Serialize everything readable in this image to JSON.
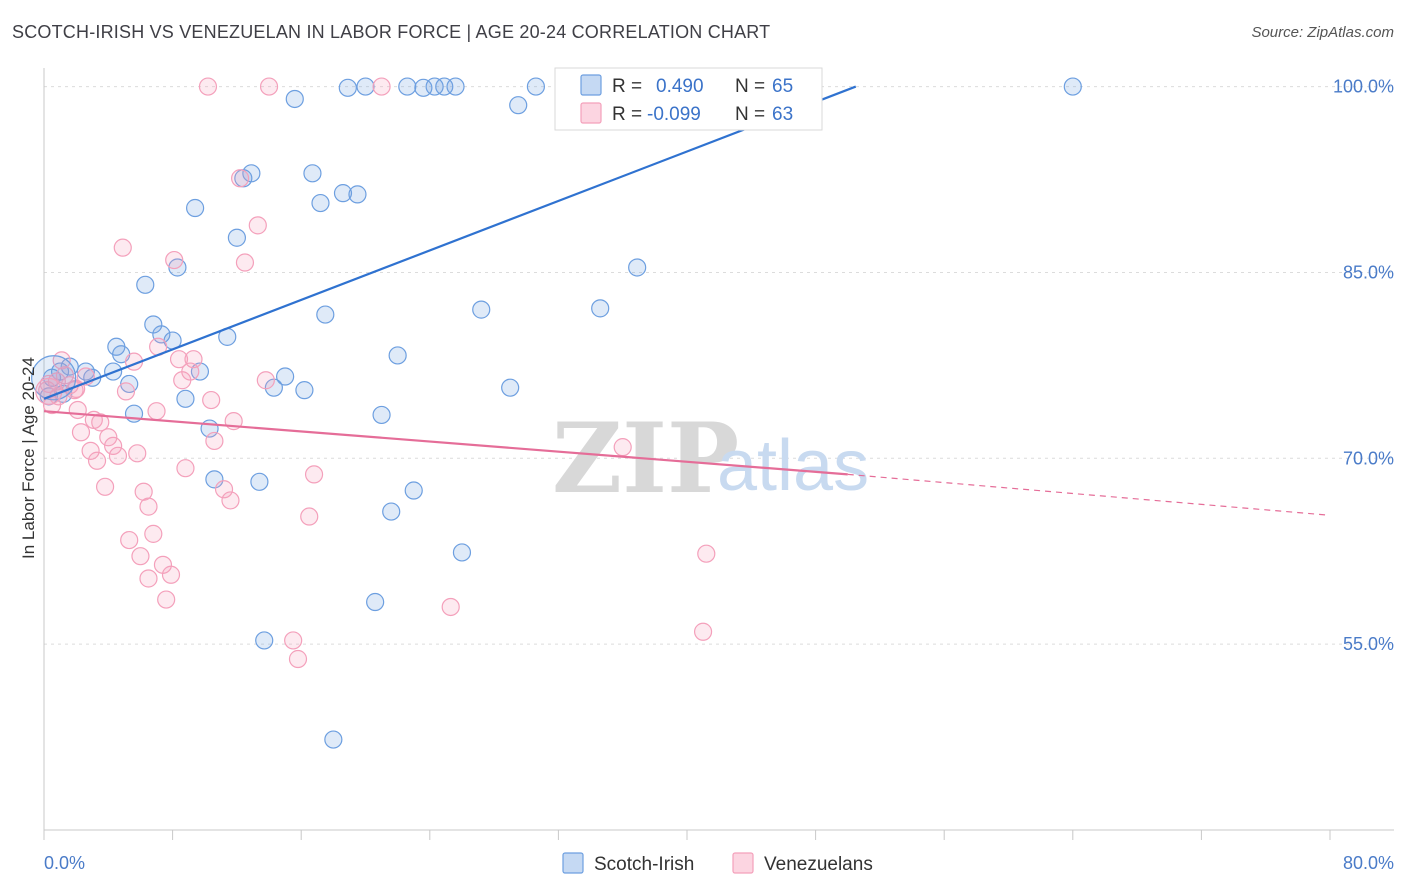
{
  "header": {
    "title": "SCOTCH-IRISH VS VENEZUELAN IN LABOR FORCE | AGE 20-24 CORRELATION CHART",
    "source": "Source: ZipAtlas.com"
  },
  "watermark": {
    "zip": "ZIP",
    "atlas": "atlas"
  },
  "legend": {
    "rows": [
      {
        "r_label": "R =",
        "r_value": "0.490",
        "n_label": "N =",
        "n_value": "65",
        "color": "#6d9fe0"
      },
      {
        "r_label": "R =",
        "r_value": "-0.099",
        "n_label": "N =",
        "n_value": "63",
        "color": "#f4a0bb"
      }
    ]
  },
  "bottom_legend": {
    "items": [
      {
        "label": "Scotch-Irish",
        "color": "#6d9fe0"
      },
      {
        "label": "Venezuelans",
        "color": "#f4a0bb"
      }
    ]
  },
  "chart_data": {
    "type": "scatter",
    "title": "SCOTCH-IRISH VS VENEZUELAN IN LABOR FORCE | AGE 20-24 CORRELATION CHART",
    "xlabel": "",
    "ylabel": "In Labor Force | Age 20-24",
    "xlim": [
      0,
      80
    ],
    "ylim": [
      40,
      101.5
    ],
    "x_tick_labels": [
      "0.0%",
      "80.0%"
    ],
    "y_ticks": [
      55,
      70,
      85,
      100
    ],
    "y_tick_labels": [
      "55.0%",
      "70.0%",
      "85.0%",
      "100.0%"
    ],
    "grid": true,
    "legend_position": "top-center",
    "series": [
      {
        "name": "Scotch-Irish",
        "color": "#6d9fe0",
        "trend": {
          "x": [
            0,
            50.5
          ],
          "y": [
            74.8,
            100.0
          ],
          "dashed_to": null
        },
        "points": [
          [
            1.0,
            77.0
          ],
          [
            1.6,
            77.4
          ],
          [
            2.6,
            77.0
          ],
          [
            3.0,
            76.5
          ],
          [
            4.3,
            77.0
          ],
          [
            4.5,
            79.0
          ],
          [
            4.8,
            78.4
          ],
          [
            5.3,
            76.0
          ],
          [
            5.6,
            73.6
          ],
          [
            6.3,
            84.0
          ],
          [
            6.8,
            80.8
          ],
          [
            7.3,
            80.0
          ],
          [
            8.0,
            79.5
          ],
          [
            8.3,
            85.4
          ],
          [
            8.8,
            74.8
          ],
          [
            9.4,
            90.2
          ],
          [
            9.7,
            77.0
          ],
          [
            10.3,
            72.4
          ],
          [
            10.6,
            68.3
          ],
          [
            11.4,
            79.8
          ],
          [
            12.0,
            87.8
          ],
          [
            12.4,
            92.6
          ],
          [
            12.9,
            93.0
          ],
          [
            13.4,
            68.1
          ],
          [
            13.7,
            55.3
          ],
          [
            14.3,
            75.7
          ],
          [
            15.0,
            76.6
          ],
          [
            15.6,
            99.0
          ],
          [
            16.2,
            75.5
          ],
          [
            16.7,
            93.0
          ],
          [
            17.2,
            90.6
          ],
          [
            17.5,
            81.6
          ],
          [
            18.0,
            47.3
          ],
          [
            18.6,
            91.4
          ],
          [
            18.9,
            99.9
          ],
          [
            19.5,
            91.3
          ],
          [
            20.0,
            100.0
          ],
          [
            20.6,
            58.4
          ],
          [
            21.0,
            73.5
          ],
          [
            21.6,
            65.7
          ],
          [
            22.0,
            78.3
          ],
          [
            22.6,
            100.0
          ],
          [
            23.0,
            67.4
          ],
          [
            23.6,
            99.9
          ],
          [
            24.3,
            100.0
          ],
          [
            24.9,
            100.0
          ],
          [
            25.6,
            100.0
          ],
          [
            26.0,
            62.4
          ],
          [
            27.2,
            82.0
          ],
          [
            29.0,
            75.7
          ],
          [
            29.5,
            98.5
          ],
          [
            30.6,
            100.0
          ],
          [
            34.0,
            100.0
          ],
          [
            34.6,
            82.1
          ],
          [
            36.9,
            85.4
          ],
          [
            36.3,
            100.0
          ],
          [
            39.0,
            100.0
          ],
          [
            40.0,
            100.0
          ],
          [
            43.4,
            100.0
          ],
          [
            44.0,
            100.0
          ],
          [
            45.0,
            100.0
          ],
          [
            64.0,
            100.0
          ],
          [
            0.3,
            75.0
          ],
          [
            0.5,
            76.5
          ],
          [
            1.2,
            75.2
          ]
        ]
      },
      {
        "name": "Venezuelans",
        "color": "#f4a0bb",
        "trend": {
          "x": [
            0,
            50.0
          ],
          "y": [
            73.8,
            68.7
          ],
          "dashed_to": [
            80.0,
            65.4
          ]
        },
        "points": [
          [
            0.2,
            75.5
          ],
          [
            0.5,
            74.3
          ],
          [
            0.8,
            76.2
          ],
          [
            1.1,
            77.9
          ],
          [
            1.3,
            76.7
          ],
          [
            1.6,
            75.9
          ],
          [
            1.9,
            75.5
          ],
          [
            2.1,
            73.9
          ],
          [
            2.3,
            72.1
          ],
          [
            2.6,
            76.6
          ],
          [
            2.9,
            70.6
          ],
          [
            3.1,
            73.1
          ],
          [
            3.3,
            69.8
          ],
          [
            3.5,
            72.9
          ],
          [
            3.8,
            67.7
          ],
          [
            4.0,
            71.7
          ],
          [
            4.3,
            71.0
          ],
          [
            4.6,
            70.2
          ],
          [
            4.9,
            87.0
          ],
          [
            5.1,
            75.4
          ],
          [
            5.3,
            63.4
          ],
          [
            5.6,
            77.8
          ],
          [
            5.8,
            70.4
          ],
          [
            6.0,
            62.1
          ],
          [
            6.2,
            67.3
          ],
          [
            6.5,
            60.3
          ],
          [
            6.8,
            63.9
          ],
          [
            7.1,
            79.0
          ],
          [
            7.4,
            61.4
          ],
          [
            7.6,
            58.6
          ],
          [
            7.9,
            60.6
          ],
          [
            8.1,
            86.0
          ],
          [
            8.4,
            78.0
          ],
          [
            8.6,
            76.3
          ],
          [
            8.8,
            69.2
          ],
          [
            9.1,
            77.0
          ],
          [
            9.3,
            78.0
          ],
          [
            10.2,
            100.0
          ],
          [
            10.4,
            74.7
          ],
          [
            10.6,
            71.4
          ],
          [
            11.2,
            67.5
          ],
          [
            11.6,
            66.6
          ],
          [
            11.8,
            73.0
          ],
          [
            12.2,
            92.6
          ],
          [
            12.5,
            85.8
          ],
          [
            13.3,
            88.8
          ],
          [
            13.8,
            76.3
          ],
          [
            14.0,
            100.0
          ],
          [
            15.5,
            55.3
          ],
          [
            15.8,
            53.8
          ],
          [
            16.5,
            65.3
          ],
          [
            16.8,
            68.7
          ],
          [
            21.0,
            100.0
          ],
          [
            25.3,
            58.0
          ],
          [
            35.5,
            100.0
          ],
          [
            36.0,
            70.9
          ],
          [
            41.0,
            56.0
          ],
          [
            41.2,
            62.3
          ],
          [
            0.3,
            76.0
          ],
          [
            0.9,
            75.0
          ],
          [
            6.5,
            66.1
          ],
          [
            7.0,
            73.8
          ],
          [
            2.0,
            75.6
          ]
        ]
      }
    ]
  }
}
